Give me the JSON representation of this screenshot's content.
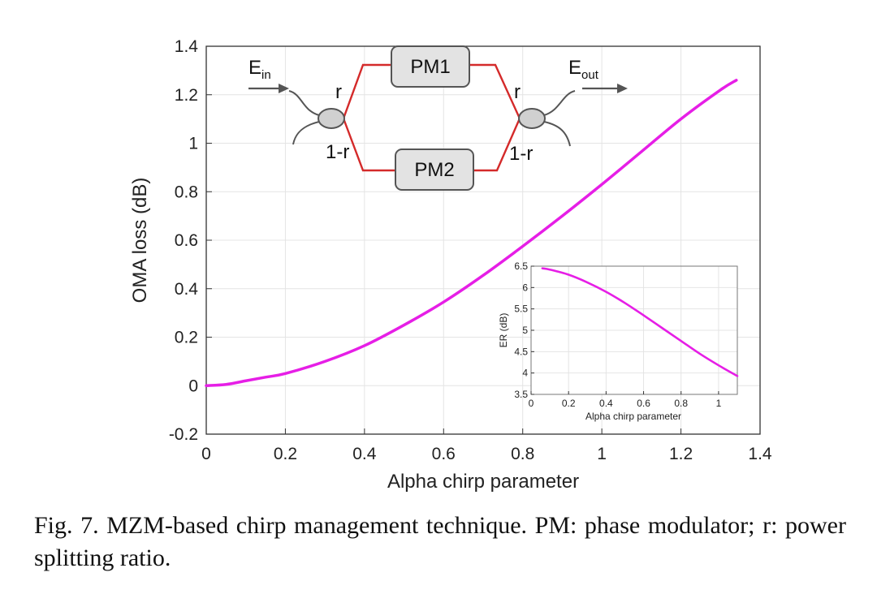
{
  "chart_data": {
    "main": {
      "type": "line",
      "xlabel": "Alpha chirp parameter",
      "ylabel": "OMA loss (dB)",
      "xlim": [
        0,
        1.4
      ],
      "ylim": [
        -0.2,
        1.4
      ],
      "xticks": [
        0,
        0.2,
        0.4,
        0.6,
        0.8,
        1,
        1.2,
        1.4
      ],
      "xtick_labels": [
        "0",
        "0.2",
        "0.4",
        "0.6",
        "0.8",
        "1",
        "1.2",
        "1.4"
      ],
      "yticks": [
        -0.2,
        0,
        0.2,
        0.4,
        0.6,
        0.8,
        1,
        1.2,
        1.4
      ],
      "ytick_labels": [
        "-0.2",
        "0",
        "0.2",
        "0.4",
        "0.6",
        "0.8",
        "1",
        "1.2",
        "1.4"
      ],
      "grid": true,
      "series": [
        {
          "name": "OMA loss",
          "color": "#e61ee6",
          "x": [
            0,
            0.05,
            0.1,
            0.15,
            0.2,
            0.3,
            0.4,
            0.5,
            0.6,
            0.7,
            0.8,
            0.9,
            1.0,
            1.1,
            1.2,
            1.3,
            1.34
          ],
          "y": [
            0,
            0.005,
            0.02,
            0.035,
            0.05,
            0.1,
            0.165,
            0.25,
            0.345,
            0.455,
            0.575,
            0.7,
            0.83,
            0.965,
            1.1,
            1.22,
            1.26
          ]
        }
      ]
    },
    "inset": {
      "type": "line",
      "xlabel": "Alpha chirp parameter",
      "ylabel": "ER (dB)",
      "xlim": [
        0,
        1.1
      ],
      "ylim": [
        3.5,
        6.5
      ],
      "xticks": [
        0,
        0.2,
        0.4,
        0.6,
        0.8,
        1
      ],
      "xtick_labels": [
        "0",
        "0.2",
        "0.4",
        "0.6",
        "0.8",
        "1"
      ],
      "yticks": [
        3.5,
        4,
        4.5,
        5,
        5.5,
        6,
        6.5
      ],
      "ytick_labels": [
        "3.5",
        "4",
        "4.5",
        "5",
        "5.5",
        "6",
        "6.5"
      ],
      "grid": true,
      "series": [
        {
          "name": "ER",
          "color": "#e61ee6",
          "x": [
            0.06,
            0.1,
            0.2,
            0.3,
            0.4,
            0.5,
            0.6,
            0.7,
            0.8,
            0.9,
            1.0,
            1.1
          ],
          "y": [
            6.45,
            6.42,
            6.3,
            6.12,
            5.9,
            5.64,
            5.35,
            5.05,
            4.75,
            4.45,
            4.18,
            3.93
          ]
        }
      ]
    }
  },
  "diagram": {
    "input_label": "E",
    "input_sub": "in",
    "output_label": "E",
    "output_sub": "out",
    "top_modulator": "PM1",
    "bottom_modulator": "PM2",
    "left_top_ratio": "r",
    "left_bottom_ratio": "1-r",
    "right_top_ratio": "r",
    "right_bottom_ratio": "1-r",
    "arm_color": "#d42a2a"
  },
  "caption": "Fig. 7.  MZM-based chirp management technique. PM: phase modulator; r: power splitting ratio."
}
